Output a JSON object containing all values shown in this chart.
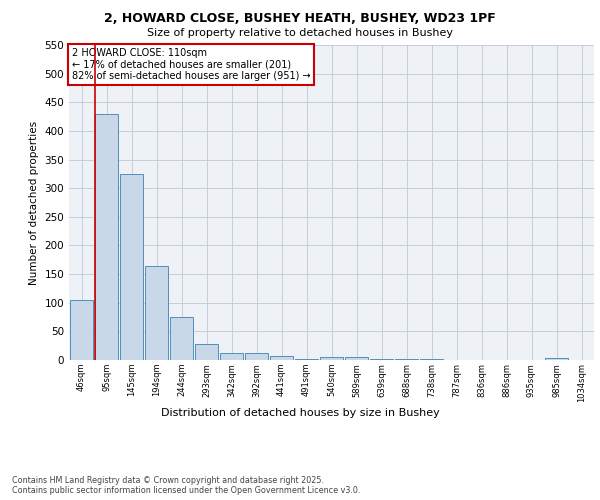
{
  "title_line1": "2, HOWARD CLOSE, BUSHEY HEATH, BUSHEY, WD23 1PF",
  "title_line2": "Size of property relative to detached houses in Bushey",
  "xlabel": "Distribution of detached houses by size in Bushey",
  "ylabel": "Number of detached properties",
  "bin_labels": [
    "46sqm",
    "95sqm",
    "145sqm",
    "194sqm",
    "244sqm",
    "293sqm",
    "342sqm",
    "392sqm",
    "441sqm",
    "491sqm",
    "540sqm",
    "589sqm",
    "639sqm",
    "688sqm",
    "738sqm",
    "787sqm",
    "836sqm",
    "886sqm",
    "935sqm",
    "985sqm",
    "1034sqm"
  ],
  "bar_values": [
    105,
    430,
    325,
    165,
    75,
    28,
    13,
    13,
    7,
    2,
    5,
    5,
    2,
    2,
    1,
    0,
    0,
    0,
    0,
    3,
    0
  ],
  "bar_color": "#c8d8e8",
  "bar_edge_color": "#5090b8",
  "vline_color": "#cc0000",
  "annotation_text": "2 HOWARD CLOSE: 110sqm\n← 17% of detached houses are smaller (201)\n82% of semi-detached houses are larger (951) →",
  "annotation_box_color": "#ffffff",
  "annotation_box_edge_color": "#cc0000",
  "ylim": [
    0,
    550
  ],
  "yticks": [
    0,
    50,
    100,
    150,
    200,
    250,
    300,
    350,
    400,
    450,
    500,
    550
  ],
  "grid_color": "#c0c8d8",
  "bg_color": "#eef2f7",
  "footnote": "Contains HM Land Registry data © Crown copyright and database right 2025.\nContains public sector information licensed under the Open Government Licence v3.0."
}
